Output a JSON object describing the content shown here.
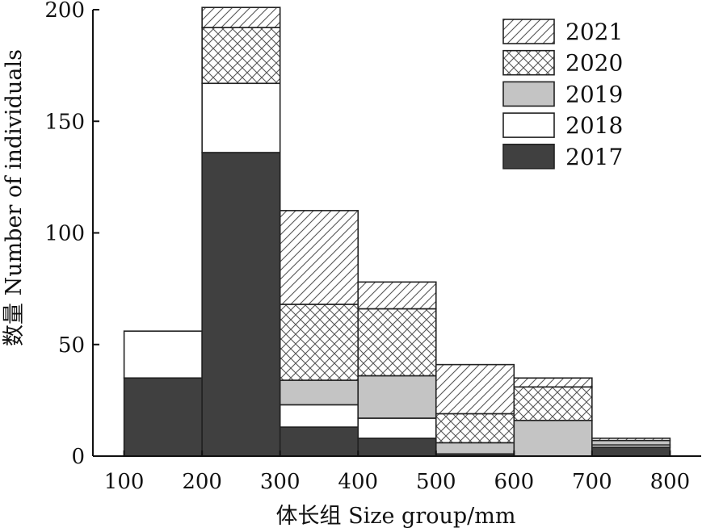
{
  "chart_data": {
    "type": "bar",
    "stacked": true,
    "histogram": true,
    "categories": [
      "100-200",
      "200-300",
      "300-400",
      "400-500",
      "500-600",
      "600-700",
      "700-800"
    ],
    "bin_edges": [
      100,
      200,
      300,
      400,
      500,
      600,
      700,
      800
    ],
    "series": [
      {
        "name": "2017",
        "color": "#404040",
        "pattern": "solid-dark",
        "values": [
          35,
          136,
          13,
          8,
          1,
          0,
          4
        ]
      },
      {
        "name": "2018",
        "color": "#ffffff",
        "pattern": "white",
        "values": [
          21,
          31,
          10,
          9,
          0,
          0,
          1
        ]
      },
      {
        "name": "2019",
        "color": "#c4c4c4",
        "pattern": "gray",
        "values": [
          0,
          0,
          11,
          19,
          5,
          16,
          2
        ]
      },
      {
        "name": "2020",
        "color": "#ffffff",
        "pattern": "crosshatch",
        "values": [
          0,
          25,
          34,
          30,
          13,
          15,
          0
        ]
      },
      {
        "name": "2021",
        "color": "#ffffff",
        "pattern": "diagonal",
        "values": [
          0,
          9,
          42,
          12,
          22,
          4,
          1
        ]
      }
    ],
    "xlabel": "体长组 Size group/mm",
    "ylabel": "数量 Number of individuals",
    "x_ticks": [
      "100",
      "200",
      "300",
      "400",
      "500",
      "600",
      "700",
      "800"
    ],
    "y_ticks": [
      "0",
      "50",
      "100",
      "150",
      "200"
    ],
    "ylim": [
      0,
      200
    ],
    "xlim": [
      60,
      840
    ],
    "grid": false,
    "legend_position": "top-right",
    "legend_order": [
      "2021",
      "2020",
      "2019",
      "2018",
      "2017"
    ]
  }
}
